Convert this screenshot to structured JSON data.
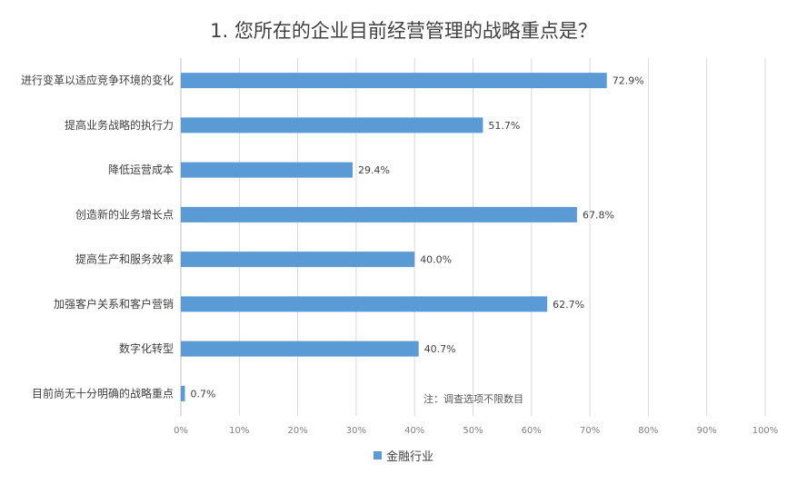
{
  "chart_data": {
    "type": "bar",
    "orientation": "horizontal",
    "title": "1. 您所在的企业目前经营管理的战略重点是？",
    "categories": [
      "进行变革以适应竞争环境的变化",
      "提高业务战略的执行力",
      "降低运营成本",
      "创造新的业务增长点",
      "提高生产和服务效率",
      "加强客户关系和客户营销",
      "数字化转型",
      "目前尚无十分明确的战略重点"
    ],
    "series": [
      {
        "name": "金融行业",
        "values": [
          72.9,
          51.7,
          29.4,
          67.8,
          40.0,
          62.7,
          40.7,
          0.7
        ],
        "labels": [
          "72.9%",
          "51.7%",
          "29.4%",
          "67.8%",
          "40.0%",
          "62.7%",
          "40.7%",
          "0.7%"
        ],
        "color": "#5b9bd5"
      }
    ],
    "xlim": [
      0,
      100
    ],
    "xticks": [
      "0%",
      "10%",
      "20%",
      "30%",
      "40%",
      "50%",
      "60%",
      "70%",
      "80%",
      "90%",
      "100%"
    ],
    "grid": true,
    "legend_position": "bottom",
    "annotation": "注：调查选项不限数目"
  }
}
